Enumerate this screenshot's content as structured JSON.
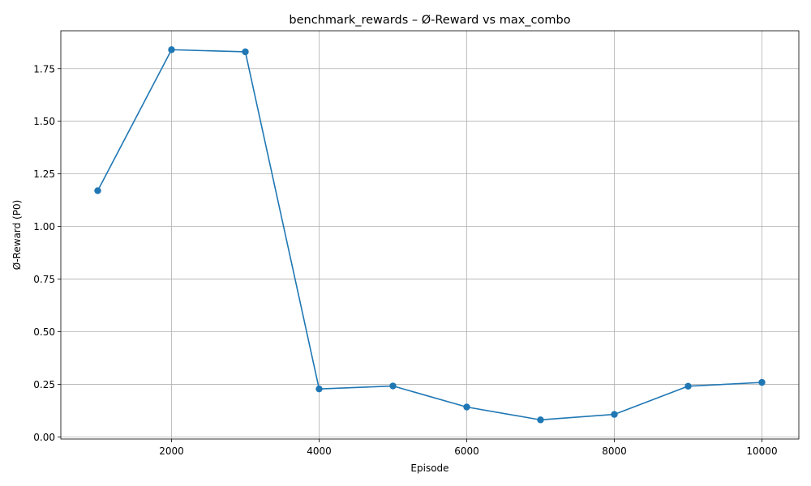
{
  "chart_data": {
    "type": "line",
    "title": "benchmark_rewards – Ø-Reward vs max_combo",
    "xlabel": "Episode",
    "ylabel": "Ø-Reward (P0)",
    "xlim": [
      500,
      10500
    ],
    "ylim": [
      -0.01,
      1.93
    ],
    "x_ticks": [
      2000,
      4000,
      6000,
      8000,
      10000
    ],
    "x_tick_labels": [
      "2000",
      "4000",
      "6000",
      "8000",
      "10000"
    ],
    "y_ticks": [
      0.0,
      0.25,
      0.5,
      0.75,
      1.0,
      1.25,
      1.5,
      1.75
    ],
    "y_tick_labels": [
      "0.00",
      "0.25",
      "0.50",
      "0.75",
      "1.00",
      "1.25",
      "1.50",
      "1.75"
    ],
    "grid": true,
    "series": [
      {
        "color": "#1f77b4",
        "marker": "circle",
        "x": [
          1000,
          2000,
          3000,
          4000,
          5000,
          6000,
          7000,
          8000,
          9000,
          10000
        ],
        "values": [
          1.17,
          1.84,
          1.83,
          0.228,
          0.242,
          0.142,
          0.081,
          0.107,
          0.241,
          0.259
        ]
      }
    ]
  }
}
